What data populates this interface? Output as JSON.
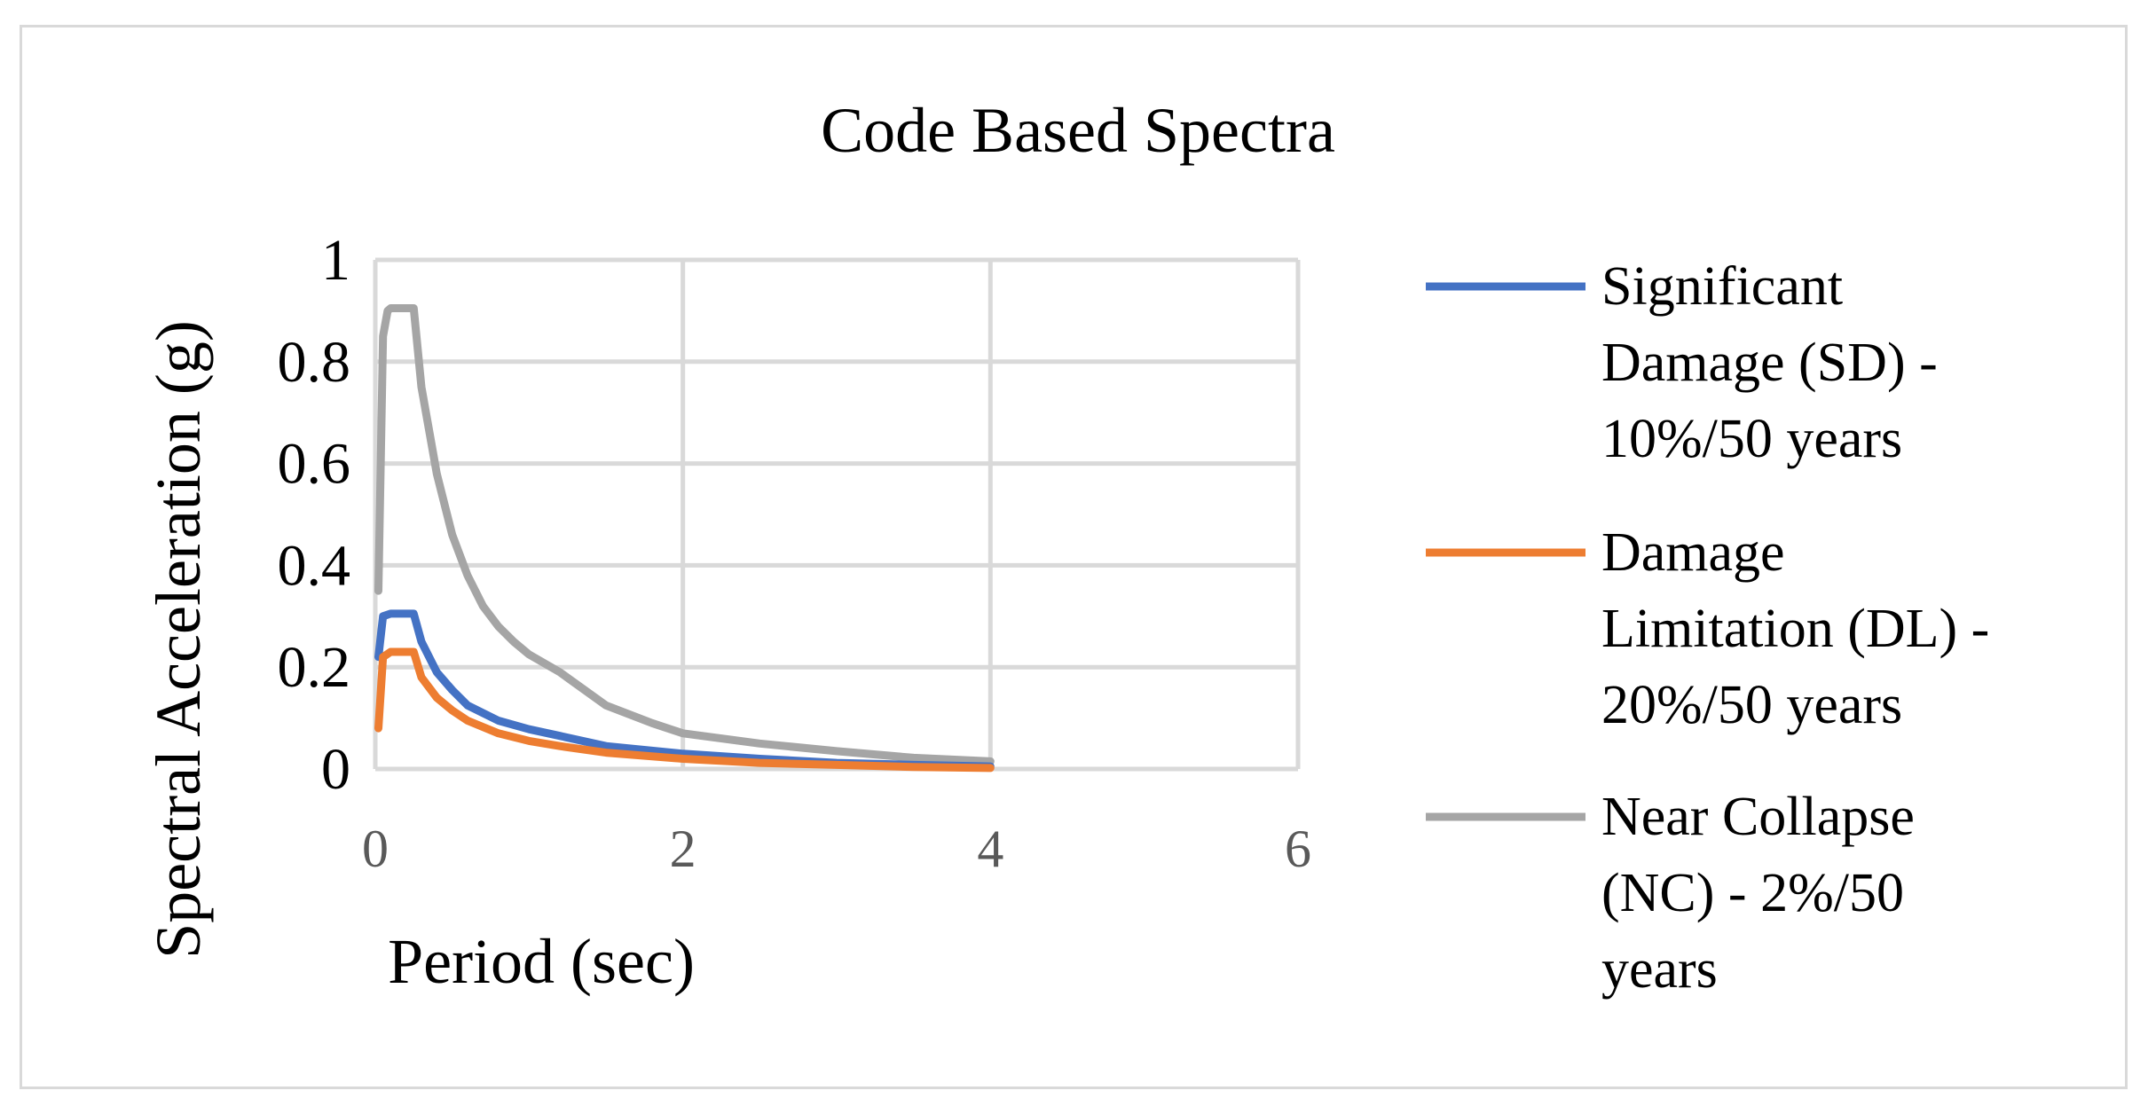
{
  "chart_data": {
    "type": "line",
    "title": "Code Based Spectra",
    "xlabel": "Period (sec)",
    "ylabel": "Spectral Acceleration (g)",
    "xlim": [
      0,
      6
    ],
    "ylim": [
      0,
      1
    ],
    "x_ticks": [
      "0",
      "2",
      "4",
      "6"
    ],
    "y_ticks": [
      "0",
      "0.2",
      "0.4",
      "0.6",
      "0.8",
      "1"
    ],
    "grid": true,
    "legend_position": "right",
    "series": [
      {
        "name": "Significant Damage (SD) - 10%/50 years",
        "legend_lines": [
          "Significant",
          "Damage (SD) -",
          "10%/50 years"
        ],
        "color": "#4472c4",
        "x": [
          0.02,
          0.05,
          0.1,
          0.25,
          0.3,
          0.4,
          0.5,
          0.6,
          0.8,
          1.0,
          1.2,
          1.5,
          2.0,
          2.5,
          3.0,
          3.5,
          4.0
        ],
        "y": [
          0.22,
          0.3,
          0.305,
          0.305,
          0.25,
          0.19,
          0.155,
          0.125,
          0.095,
          0.078,
          0.065,
          0.045,
          0.03,
          0.02,
          0.012,
          0.008,
          0.005
        ]
      },
      {
        "name": "Damage Limitation (DL) - 20%/50 years",
        "legend_lines": [
          "Damage",
          "Limitation (DL) -",
          "20%/50 years"
        ],
        "color": "#ed7d31",
        "x": [
          0.02,
          0.05,
          0.1,
          0.25,
          0.3,
          0.4,
          0.5,
          0.6,
          0.8,
          1.0,
          1.2,
          1.5,
          2.0,
          2.5,
          3.0,
          3.5,
          4.0
        ],
        "y": [
          0.08,
          0.22,
          0.23,
          0.23,
          0.18,
          0.14,
          0.115,
          0.095,
          0.07,
          0.055,
          0.045,
          0.032,
          0.02,
          0.012,
          0.008,
          0.004,
          0.002
        ]
      },
      {
        "name": "Near Collapse (NC) - 2%/50 years",
        "legend_lines": [
          "Near Collapse",
          "(NC) - 2%/50",
          "years"
        ],
        "color": "#a5a5a5",
        "x": [
          0.02,
          0.05,
          0.08,
          0.1,
          0.25,
          0.3,
          0.4,
          0.5,
          0.6,
          0.7,
          0.8,
          0.9,
          1.0,
          1.2,
          1.5,
          1.8,
          2.0,
          2.5,
          3.0,
          3.5,
          4.0
        ],
        "y": [
          0.35,
          0.85,
          0.9,
          0.905,
          0.905,
          0.75,
          0.58,
          0.46,
          0.38,
          0.32,
          0.28,
          0.25,
          0.225,
          0.19,
          0.125,
          0.09,
          0.07,
          0.05,
          0.035,
          0.022,
          0.015
        ]
      }
    ]
  }
}
